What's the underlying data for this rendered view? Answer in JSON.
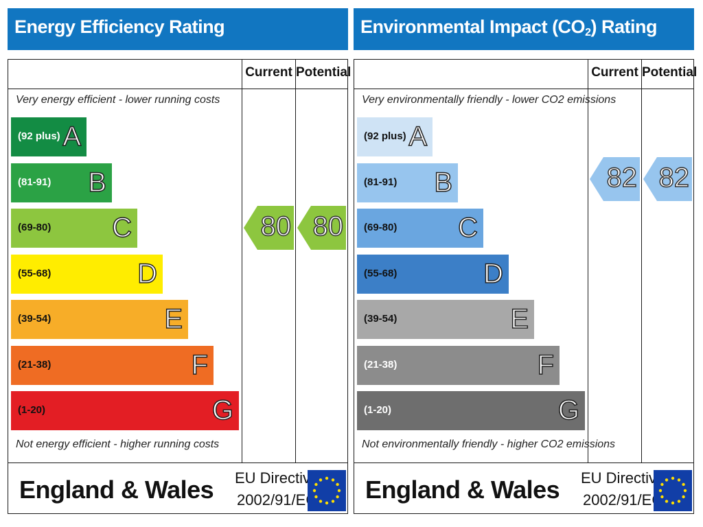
{
  "chart_data": [
    {
      "type": "bar",
      "title": "Energy Efficiency Rating",
      "columns": [
        "Current",
        "Potential"
      ],
      "top_note": "Very energy efficient - lower running costs",
      "bottom_note": "Not energy efficient - higher running costs",
      "bands": [
        {
          "letter": "A",
          "range": "(92 plus)",
          "color": "#138c44",
          "text_color": "#ffffff"
        },
        {
          "letter": "B",
          "range": "(81-91)",
          "color": "#2ba245",
          "text_color": "#ffffff"
        },
        {
          "letter": "C",
          "range": "(69-80)",
          "color": "#8dc63f",
          "text_color": "#111111"
        },
        {
          "letter": "D",
          "range": "(55-68)",
          "color": "#ffed00",
          "text_color": "#111111"
        },
        {
          "letter": "E",
          "range": "(39-54)",
          "color": "#f7ad28",
          "text_color": "#111111"
        },
        {
          "letter": "F",
          "range": "(21-38)",
          "color": "#ef6c23",
          "text_color": "#111111"
        },
        {
          "letter": "G",
          "range": "(1-20)",
          "color": "#e31e24",
          "text_color": "#111111"
        }
      ],
      "current": {
        "value": "80",
        "band": "C",
        "color": "#8dc63f"
      },
      "potential": {
        "value": "80",
        "band": "C",
        "color": "#8dc63f"
      },
      "footer": {
        "country": "England & Wales",
        "directive_line1": "EU Directive",
        "directive_line2": "2002/91/EC"
      }
    },
    {
      "type": "bar",
      "title": "Environmental Impact (CO2) Rating",
      "title_main": "Environmental Impact (CO",
      "title_sub": "2",
      "title_end": ") Rating",
      "columns": [
        "Current",
        "Potential"
      ],
      "top_note": "Very environmentally friendly - lower CO2 emissions",
      "bottom_note": "Not environmentally friendly - higher CO2 emissions",
      "bands": [
        {
          "letter": "A",
          "range": "(92 plus)",
          "color": "#cfe3f5",
          "text_color": "#111111"
        },
        {
          "letter": "B",
          "range": "(81-91)",
          "color": "#97c5ee",
          "text_color": "#111111"
        },
        {
          "letter": "C",
          "range": "(69-80)",
          "color": "#6aa6e0",
          "text_color": "#111111"
        },
        {
          "letter": "D",
          "range": "(55-68)",
          "color": "#3c7fc7",
          "text_color": "#111111"
        },
        {
          "letter": "E",
          "range": "(39-54)",
          "color": "#a8a8a8",
          "text_color": "#111111"
        },
        {
          "letter": "F",
          "range": "(21-38)",
          "color": "#8c8c8c",
          "text_color": "#ffffff"
        },
        {
          "letter": "G",
          "range": "(1-20)",
          "color": "#6e6e6e",
          "text_color": "#ffffff"
        }
      ],
      "current": {
        "value": "82",
        "band": "B",
        "color": "#97c5ee"
      },
      "potential": {
        "value": "82",
        "band": "B",
        "color": "#97c5ee"
      },
      "footer": {
        "country": "England & Wales",
        "directive_line1": "EU Directive",
        "directive_line2": "2002/91/EC"
      }
    }
  ]
}
